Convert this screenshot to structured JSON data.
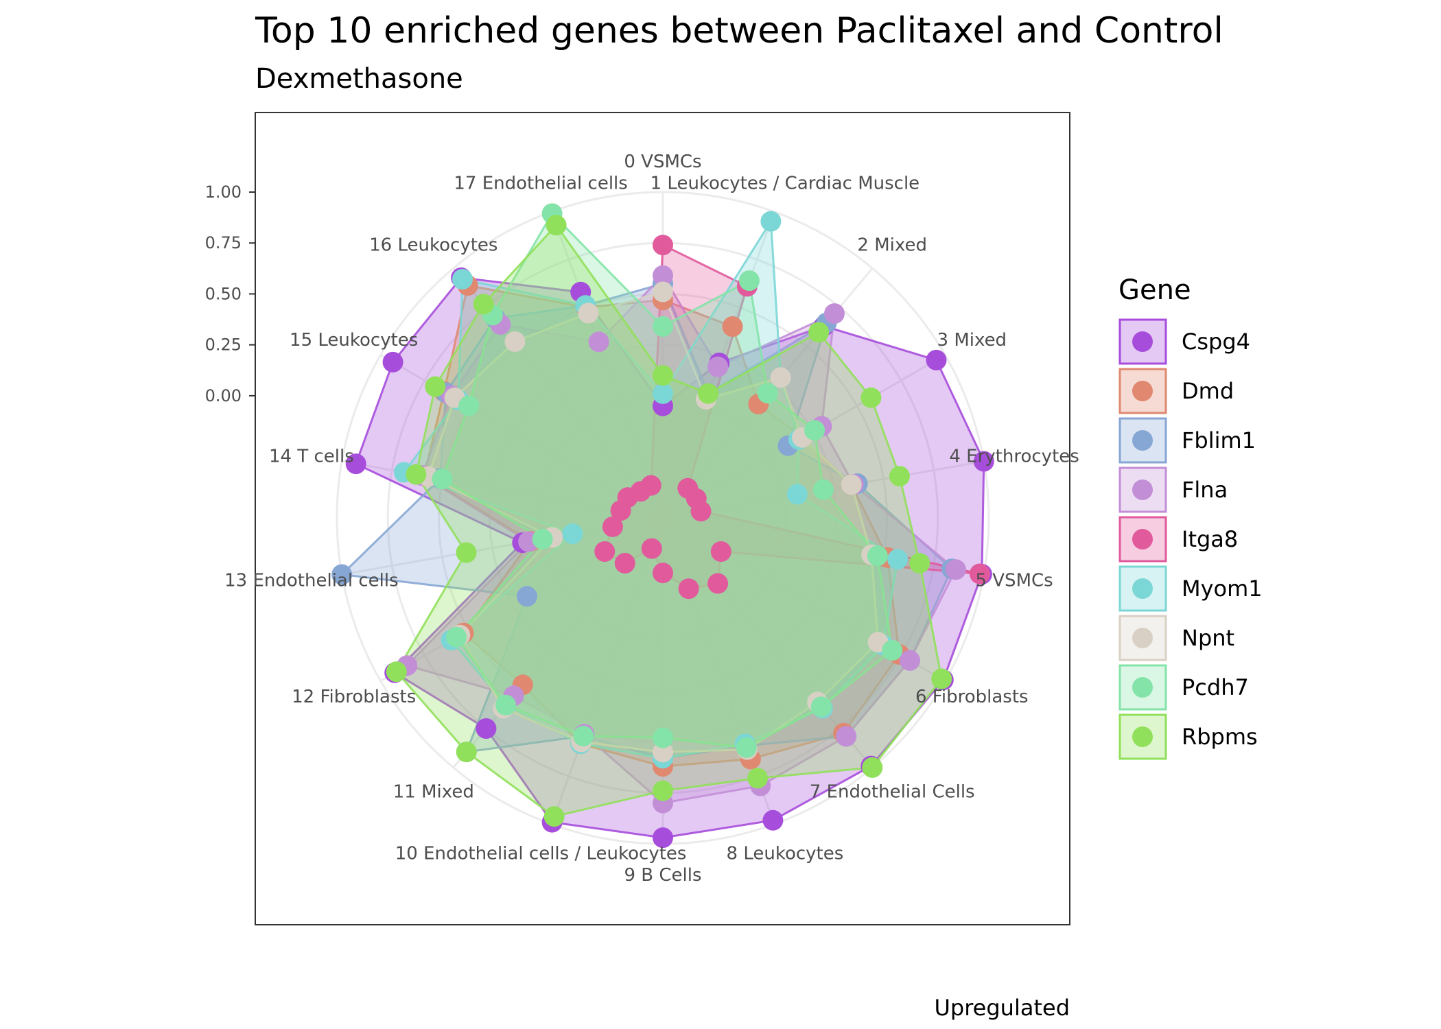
{
  "chart_data": {
    "type": "radar",
    "title": "Top 10 enriched genes between Paclitaxel and Control",
    "subtitle": "Dexmethasone",
    "caption": "Upregulated",
    "legend": {
      "title": "Gene",
      "placement": "right"
    },
    "y_ticks": [
      "0.00",
      "0.25",
      "0.50",
      "0.75",
      "1.00"
    ],
    "rlim": [
      -0.6,
      1.0
    ],
    "grid": true,
    "categories": [
      "0 VSMCs",
      "1 Leukocytes / Cardiac Muscle",
      "2 Mixed",
      "3 Mixed",
      "4 Erythrocytes",
      "5 VSMCs",
      "6 Fibroblasts",
      "7 Endothelial Cells",
      "8 Leukocytes",
      "9 B Cells",
      "10 Endothelial cells / Leukocytes",
      "11 Mixed",
      "12 Fibroblasts",
      "13 Endothelial cells",
      "14 T cells",
      "15 Leukocytes",
      "16 Leukocytes",
      "17 Endothelial cells"
    ],
    "series": [
      {
        "name": "Cspg4",
        "color": "#a64ddb",
        "values": [
          -0.05,
          0.21,
          0.63,
          0.95,
          1.0,
          0.99,
          0.99,
          0.99,
          0.98,
          0.97,
          0.99,
          0.75,
          0.92,
          0.1,
          0.93,
          0.93,
          0.94,
          0.58
        ]
      },
      {
        "name": "Dmd",
        "color": "#e08870",
        "values": [
          0.47,
          0.4,
          0.13,
          0.19,
          0.34,
          0.52,
          0.74,
          0.78,
          0.66,
          0.62,
          0.58,
          0.47,
          0.53,
          0.06,
          0.59,
          0.64,
          0.89,
          0.5
        ]
      },
      {
        "name": "Fblim1",
        "color": "#86a6d4",
        "values": [
          0.55,
          0.05,
          0.65,
          0.11,
          0.37,
          0.84,
          0.8,
          0.8,
          0.59,
          0.58,
          0.54,
          0.9,
          0.17,
          1.0,
          0.51,
          0.63,
          0.68,
          0.51
        ]
      },
      {
        "name": "Flna",
        "color": "#c28fd7",
        "values": [
          0.59,
          0.19,
          0.71,
          0.3,
          0.35,
          0.86,
          0.8,
          0.8,
          0.8,
          0.8,
          0.53,
          0.54,
          0.85,
          0.07,
          0.6,
          0.6,
          0.64,
          0.32
        ]
      },
      {
        "name": "Itga8",
        "color": "#e05a9c",
        "values": [
          0.74,
          0.61,
          -0.41,
          -0.41,
          -0.41,
          0.98,
          -0.27,
          -0.18,
          -0.23,
          -0.33,
          -0.44,
          -0.31,
          -0.27,
          -0.35,
          -0.39,
          -0.4,
          -0.43,
          -0.43
        ]
      },
      {
        "name": "Myom1",
        "color": "#7bd6d6",
        "values": [
          0.01,
          0.95,
          0.3,
          0.17,
          0.07,
          0.57,
          0.65,
          0.62,
          0.58,
          0.58,
          0.58,
          0.6,
          0.6,
          -0.15,
          0.69,
          0.56,
          0.93,
          0.51
        ]
      },
      {
        "name": "Npnt",
        "color": "#d8d0c4",
        "values": [
          0.51,
          0.02,
          0.3,
          0.19,
          0.34,
          0.44,
          0.62,
          0.58,
          0.61,
          0.55,
          0.57,
          0.62,
          0.55,
          -0.05,
          0.57,
          0.58,
          0.53,
          0.47
        ]
      },
      {
        "name": "Pcdh7",
        "color": "#84e3a8",
        "values": [
          0.34,
          0.64,
          0.2,
          0.26,
          0.2,
          0.47,
          0.7,
          0.61,
          0.6,
          0.48,
          0.54,
          0.6,
          0.57,
          0.0,
          0.5,
          0.5,
          0.7,
          0.99
        ]
      },
      {
        "name": "Rbpms",
        "color": "#91e05b",
        "values": [
          0.1,
          0.05,
          0.59,
          0.58,
          0.58,
          0.68,
          0.98,
          1.0,
          0.76,
          0.74,
          0.96,
          0.9,
          0.91,
          0.38,
          0.63,
          0.69,
          0.77,
          0.93
        ]
      }
    ]
  }
}
